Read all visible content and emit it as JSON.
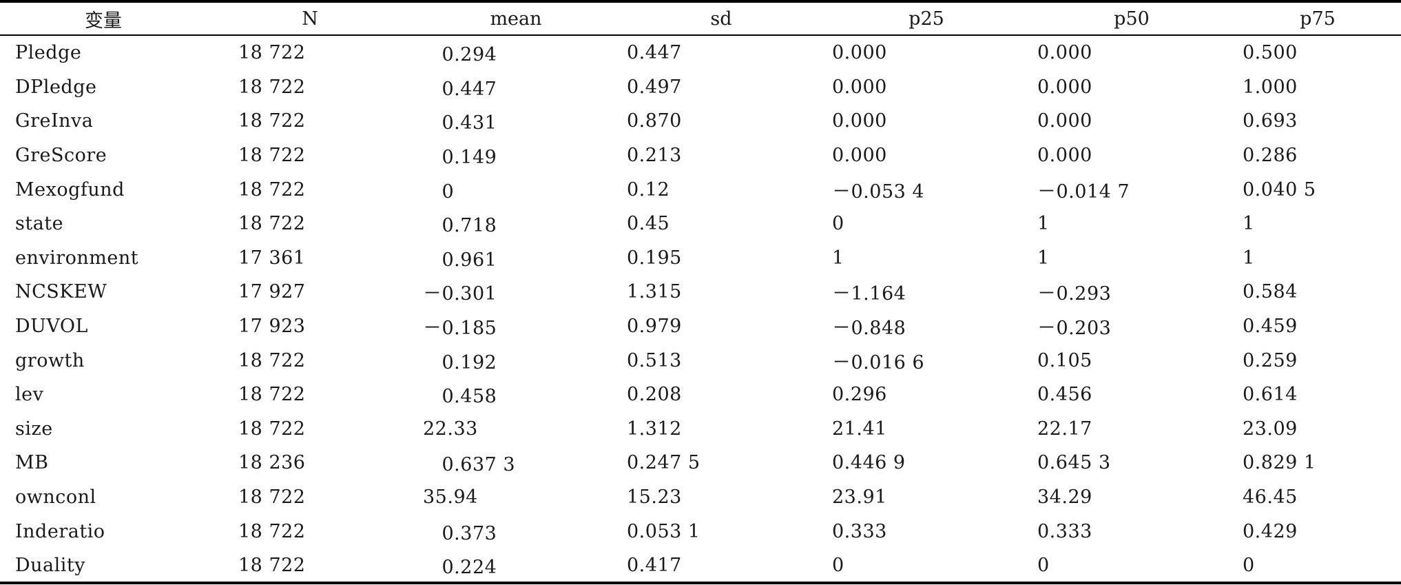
{
  "headers": [
    "变量",
    "N",
    "mean",
    "sd",
    "p25",
    "p50",
    "p75"
  ],
  "rows": [
    {
      "name": "Pledge",
      "N": "18 722",
      "mean": "　0.294",
      "sd": "0.447",
      "p25": "0.000",
      "p50": "0.000",
      "p75": "0.500"
    },
    {
      "name": "DPledge",
      "N": "18 722",
      "mean": "　0.447",
      "sd": "0.497",
      "p25": "0.000",
      "p50": "0.000",
      "p75": "1.000"
    },
    {
      "name": "GreInva",
      "N": "18 722",
      "mean": "　0.431",
      "sd": "0.870",
      "p25": "0.000",
      "p50": "0.000",
      "p75": "0.693"
    },
    {
      "name": "GreScore",
      "N": "18 722",
      "mean": "　0.149",
      "sd": "0.213",
      "p25": "0.000",
      "p50": "0.000",
      "p75": "0.286"
    },
    {
      "name": "Mexogfund",
      "N": "18 722",
      "mean": "　0",
      "sd": "0.12",
      "p25": "－0.053 4",
      "p50": "－0.014 7",
      "p75": "0.040 5"
    },
    {
      "name": "state",
      "N": "18 722",
      "mean": "　0.718",
      "sd": "0.45",
      "p25": "0",
      "p50": "1",
      "p75": "1"
    },
    {
      "name": "environment",
      "N": "17 361",
      "mean": "　0.961",
      "sd": "0.195",
      "p25": "1",
      "p50": "1",
      "p75": "1"
    },
    {
      "name": "NCSKEW",
      "N": "17 927",
      "mean": "－0.301",
      "sd": "1.315",
      "p25": "－1.164",
      "p50": "－0.293",
      "p75": "0.584"
    },
    {
      "name": "DUVOL",
      "N": "17 923",
      "mean": "－0.185",
      "sd": "0.979",
      "p25": "－0.848",
      "p50": "－0.203",
      "p75": "0.459"
    },
    {
      "name": "growth",
      "N": "18 722",
      "mean": "　0.192",
      "sd": "0.513",
      "p25": "－0.016 6",
      "p50": "0.105",
      "p75": "0.259"
    },
    {
      "name": "lev",
      "N": "18 722",
      "mean": "　0.458",
      "sd": "0.208",
      "p25": "0.296",
      "p50": "0.456",
      "p75": "0.614"
    },
    {
      "name": "size",
      "N": "18 722",
      "mean": "22.33",
      "sd": "1.312",
      "p25": "21.41",
      "p50": "22.17",
      "p75": "23.09"
    },
    {
      "name": "MB",
      "N": "18 236",
      "mean": "　0.637 3",
      "sd": "0.247 5",
      "p25": "0.446 9",
      "p50": "0.645 3",
      "p75": "0.829 1"
    },
    {
      "name": "ownconl",
      "N": "18 722",
      "mean": "35.94",
      "sd": "15.23",
      "p25": "23.91",
      "p50": "34.29",
      "p75": "46.45"
    },
    {
      "name": "Inderatio",
      "N": "18 722",
      "mean": "　0.373",
      "sd": "0.053 1",
      "p25": "0.333",
      "p50": "0.333",
      "p75": "0.429"
    },
    {
      "name": "Duality",
      "N": "18 722",
      "mean": "　0.224",
      "sd": "0.417",
      "p25": "0",
      "p50": "0",
      "p75": "0"
    }
  ]
}
